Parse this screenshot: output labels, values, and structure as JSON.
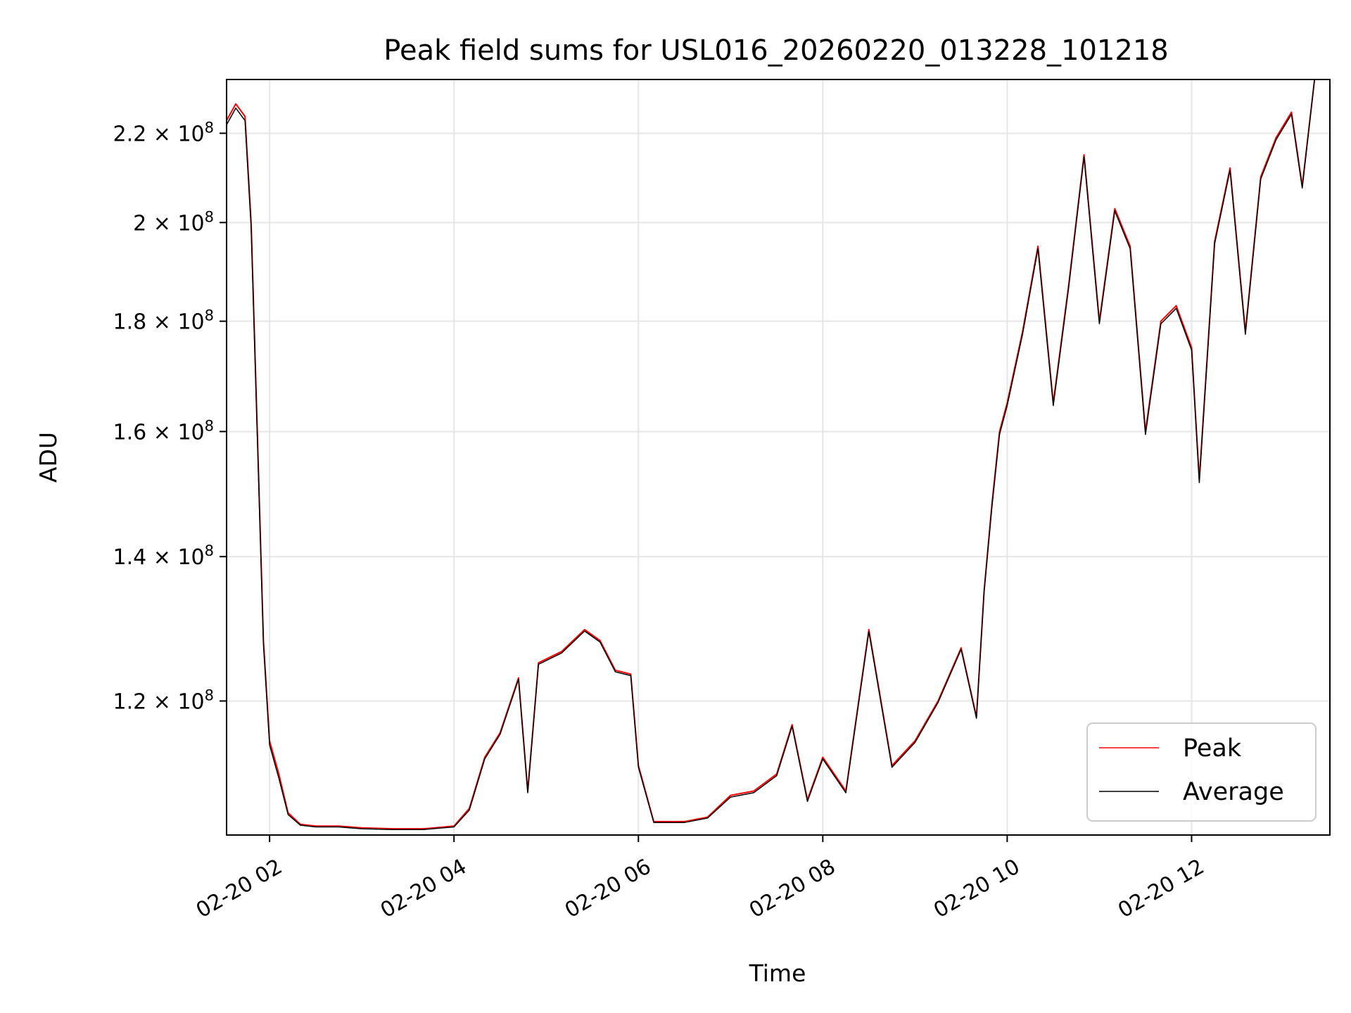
{
  "chart_data": {
    "type": "line",
    "title": "Peak field sums for USL016_20260220_013228_101218",
    "xlabel": "Time",
    "ylabel": "ADU",
    "y_scale": "log",
    "xlim": [
      "02-20 01:32",
      "02-20 13:30"
    ],
    "ylim": [
      104000000,
      233000000
    ],
    "grid": true,
    "legend_position": "lower right",
    "x_ticks": [
      {
        "label": "02-20 02",
        "value": "02-20 02:00"
      },
      {
        "label": "02-20 04",
        "value": "02-20 04:00"
      },
      {
        "label": "02-20 06",
        "value": "02-20 06:00"
      },
      {
        "label": "02-20 08",
        "value": "02-20 08:00"
      },
      {
        "label": "02-20 10",
        "value": "02-20 10:00"
      },
      {
        "label": "02-20 12",
        "value": "02-20 12:00"
      }
    ],
    "y_ticks": [
      {
        "mant": "1.2",
        "exp": "8",
        "value": 120000000
      },
      {
        "mant": "1.4",
        "exp": "8",
        "value": 140000000
      },
      {
        "mant": "1.6",
        "exp": "8",
        "value": 160000000
      },
      {
        "mant": "1.8",
        "exp": "8",
        "value": 180000000
      },
      {
        "mant": "2",
        "exp": "8",
        "value": 200000000
      },
      {
        "mant": "2.2",
        "exp": "8",
        "value": 220000000
      }
    ],
    "x": [
      "02-20 01:32",
      "02-20 01:38",
      "02-20 01:44",
      "02-20 01:48",
      "02-20 01:52",
      "02-20 01:56",
      "02-20 02:00",
      "02-20 02:06",
      "02-20 02:12",
      "02-20 02:20",
      "02-20 02:30",
      "02-20 02:45",
      "02-20 03:00",
      "02-20 03:20",
      "02-20 03:40",
      "02-20 04:00",
      "02-20 04:10",
      "02-20 04:20",
      "02-20 04:30",
      "02-20 04:42",
      "02-20 04:48",
      "02-20 04:55",
      "02-20 05:10",
      "02-20 05:25",
      "02-20 05:35",
      "02-20 05:45",
      "02-20 05:55",
      "02-20 06:00",
      "02-20 06:10",
      "02-20 06:30",
      "02-20 06:45",
      "02-20 07:00",
      "02-20 07:15",
      "02-20 07:30",
      "02-20 07:40",
      "02-20 07:50",
      "02-20 08:00",
      "02-20 08:15",
      "02-20 08:30",
      "02-20 08:45",
      "02-20 09:00",
      "02-20 09:15",
      "02-20 09:30",
      "02-20 09:40",
      "02-20 09:45",
      "02-20 09:50",
      "02-20 09:55",
      "02-20 10:00",
      "02-20 10:10",
      "02-20 10:20",
      "02-20 10:30",
      "02-20 10:40",
      "02-20 10:50",
      "02-20 11:00",
      "02-20 11:10",
      "02-20 11:20",
      "02-20 11:30",
      "02-20 11:40",
      "02-20 11:50",
      "02-20 12:00",
      "02-20 12:05",
      "02-20 12:15",
      "02-20 12:25",
      "02-20 12:35",
      "02-20 12:45",
      "02-20 12:55",
      "02-20 13:05",
      "02-20 13:12",
      "02-20 13:20",
      "02-20 13:30"
    ],
    "series": [
      {
        "name": "Peak",
        "color": "#ff0000",
        "values": [
          223000000,
          227000000,
          224000000,
          200000000,
          160000000,
          128000000,
          115000000,
          111000000,
          106500000,
          105200000,
          105000000,
          105000000,
          104800000,
          104700000,
          104700000,
          105000000,
          107000000,
          113000000,
          116000000,
          123000000,
          109000000,
          125000000,
          126500000,
          129500000,
          128000000,
          124000000,
          123500000,
          112000000,
          105500000,
          105500000,
          106000000,
          108500000,
          109000000,
          111000000,
          117000000,
          108000000,
          113000000,
          109000000,
          129500000,
          112000000,
          115000000,
          120000000,
          127000000,
          118000000,
          135000000,
          148000000,
          160000000,
          165000000,
          178000000,
          195000000,
          165000000,
          187000000,
          215000000,
          180000000,
          203000000,
          195000000,
          160000000,
          180000000,
          183000000,
          175000000,
          152000000,
          196000000,
          212000000,
          178000000,
          210000000,
          219000000,
          225000000,
          208000000,
          233000000,
          233000000
        ]
      },
      {
        "name": "Average",
        "color": "#000000",
        "values": [
          222000000,
          226000000,
          223000000,
          199000000,
          159000000,
          127500000,
          114500000,
          110500000,
          106300000,
          105100000,
          104900000,
          104900000,
          104700000,
          104600000,
          104600000,
          104900000,
          106800000,
          112800000,
          115800000,
          122800000,
          108800000,
          124800000,
          126300000,
          129300000,
          127800000,
          123800000,
          123300000,
          111800000,
          105400000,
          105400000,
          105900000,
          108300000,
          108800000,
          110800000,
          116800000,
          107800000,
          112800000,
          108800000,
          129200000,
          111800000,
          114800000,
          119800000,
          126800000,
          117800000,
          134800000,
          147500000,
          159500000,
          164500000,
          177500000,
          194500000,
          164500000,
          186500000,
          214500000,
          179500000,
          202500000,
          194500000,
          159500000,
          179500000,
          182500000,
          174500000,
          151500000,
          195500000,
          211500000,
          177500000,
          209500000,
          218500000,
          224500000,
          207500000,
          233000000,
          233000000
        ]
      }
    ]
  }
}
